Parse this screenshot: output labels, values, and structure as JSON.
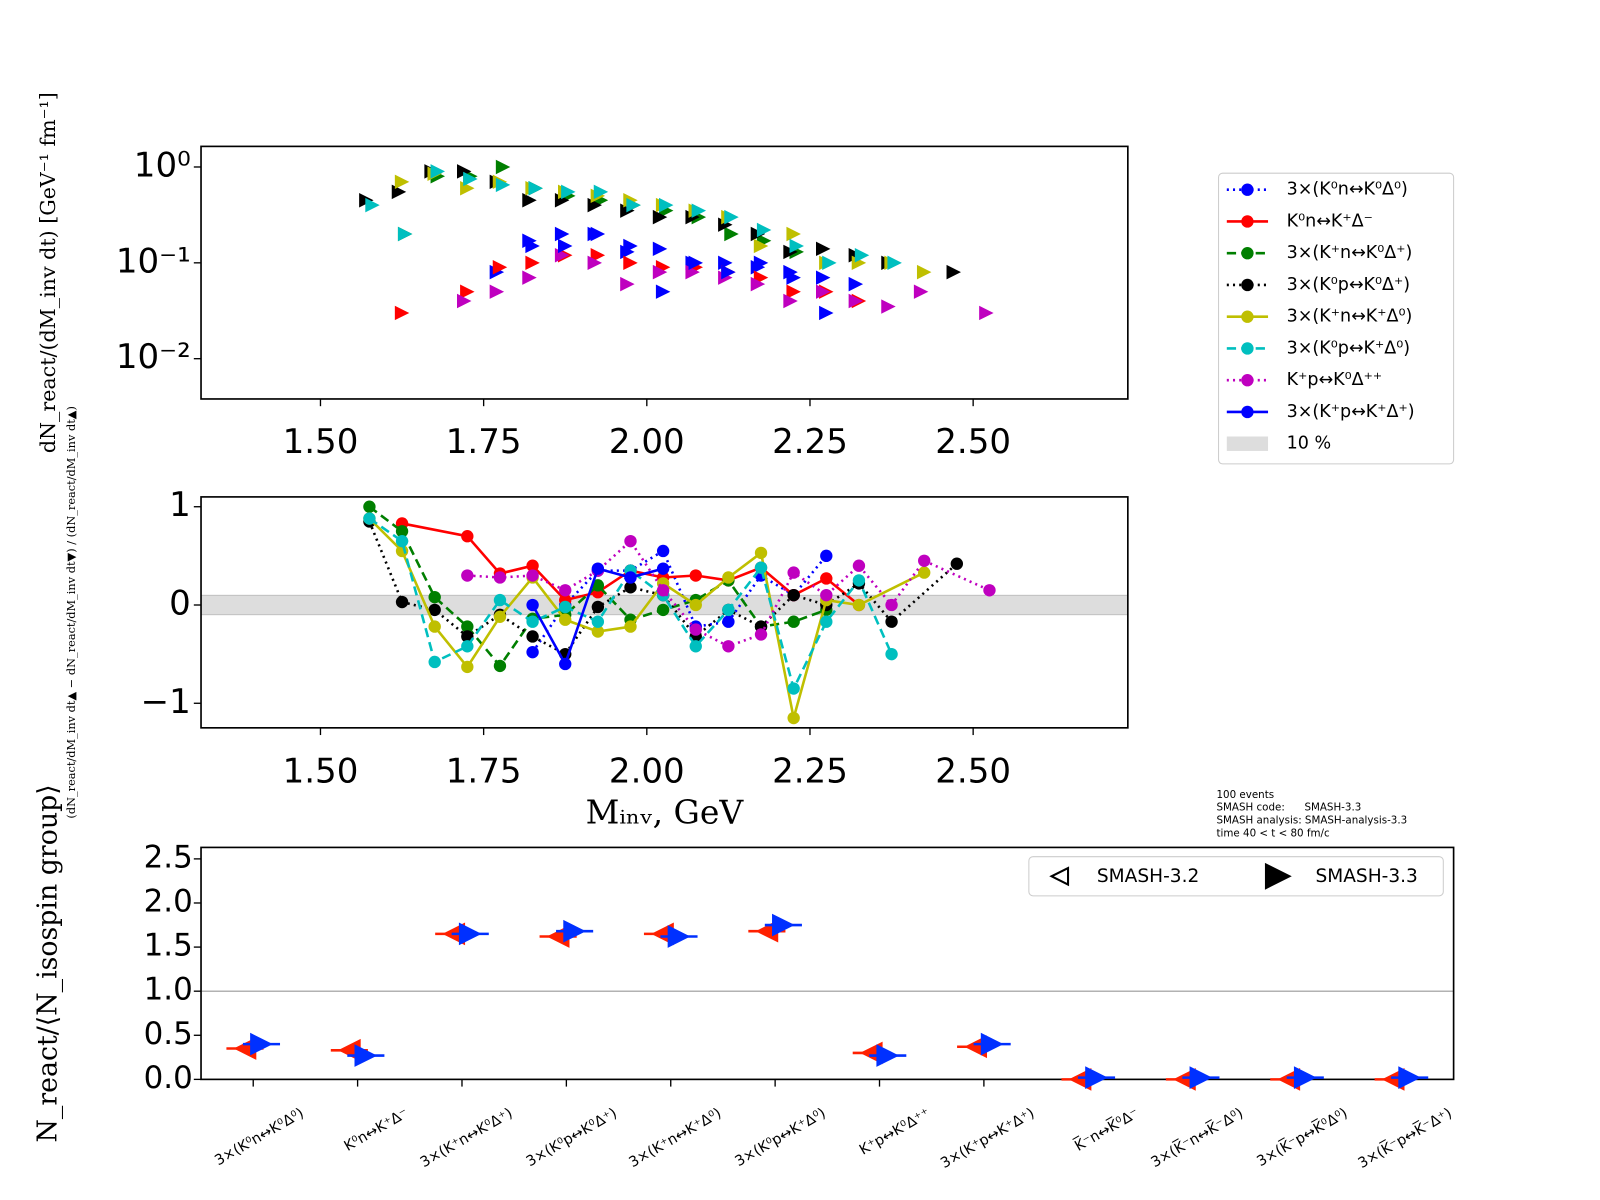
{
  "chart_data": [
    {
      "type": "scatter",
      "y_label": "dN_react/(dM_inv dt) [GeV⁻¹ fm⁻¹]",
      "log_y": true,
      "xlim": [
        1.317,
        2.737
      ],
      "ylim": [
        0.0038,
        1.64
      ],
      "xticks": [
        {
          "value": 1.5,
          "label": "1.50"
        },
        1.75,
        {
          "value": 2.0,
          "label": "2.00"
        },
        2.25,
        {
          "value": 2.5,
          "label": "2.50"
        }
      ],
      "yticks": [
        {
          "value": 0.01,
          "label": "10⁻²"
        },
        {
          "value": 0.1,
          "label": "10⁻¹"
        },
        {
          "value": 1,
          "label": "10⁰"
        }
      ],
      "x": [
        1.575,
        1.625,
        1.675,
        1.725,
        1.775,
        1.825,
        1.875,
        1.925,
        1.975,
        2.025,
        2.075,
        2.125,
        2.175,
        2.225,
        2.275,
        2.325,
        2.375,
        2.425,
        2.475,
        2.525
      ],
      "legend": "outside right",
      "series": [
        {
          "name": "3×(K⁰n↔K⁰Δ⁰)",
          "color": "#0000ff",
          "dash": "dotted",
          "values": [
            null,
            null,
            null,
            null,
            0.08,
            0.17,
            0.2,
            0.2,
            0.13,
            0.14,
            0.1,
            0.1,
            0.09,
            0.08,
            0.07,
            0.06,
            null,
            null,
            null,
            null
          ]
        },
        {
          "name": "K⁰n↔K⁺Δ⁻",
          "color": "#ff0000",
          "dash": "solid",
          "values": [
            null,
            0.03,
            null,
            0.05,
            0.09,
            0.1,
            0.12,
            0.12,
            0.1,
            0.09,
            0.09,
            0.08,
            0.07,
            0.05,
            0.05,
            0.04,
            null,
            null,
            null,
            null
          ]
        },
        {
          "name": "3×(K⁺n↔K⁰Δ⁺)",
          "color": "#007f00",
          "dash": "dashed",
          "values": [
            null,
            0.2,
            0.8,
            0.8,
            1.0,
            0.6,
            0.5,
            0.45,
            0.4,
            0.35,
            0.3,
            0.2,
            0.17,
            0.13,
            null,
            null,
            null,
            null,
            null,
            null
          ]
        },
        {
          "name": "3×(K⁰p↔K⁰Δ⁺)",
          "color": "#000000",
          "dash": "dotted",
          "values": [
            0.45,
            0.55,
            0.9,
            0.9,
            0.7,
            0.45,
            0.45,
            0.4,
            0.35,
            0.3,
            0.3,
            0.25,
            0.2,
            0.13,
            0.14,
            0.12,
            0.1,
            null,
            0.08,
            null
          ]
        },
        {
          "name": "3×(K⁺n↔K⁺Δ⁰)",
          "color": "#bfbf00",
          "dash": "solid",
          "values": [
            null,
            0.7,
            0.85,
            0.6,
            0.7,
            0.6,
            0.55,
            0.5,
            0.45,
            0.4,
            0.35,
            0.3,
            0.15,
            0.2,
            0.1,
            0.1,
            0.1,
            0.08,
            null,
            null
          ]
        },
        {
          "name": "3×(K⁰p↔K⁺Δ⁰)",
          "color": "#00bfbf",
          "dash": "dashed",
          "values": [
            0.4,
            0.2,
            0.9,
            0.75,
            0.65,
            0.6,
            0.55,
            0.55,
            0.4,
            0.4,
            0.35,
            0.3,
            0.22,
            0.15,
            0.1,
            0.12,
            0.1,
            null,
            null,
            null
          ]
        },
        {
          "name": "K⁺p↔K⁰Δ⁺⁺",
          "color": "#bf00bf",
          "dash": "dotted",
          "values": [
            null,
            null,
            null,
            0.04,
            0.05,
            0.07,
            0.12,
            0.1,
            0.06,
            0.08,
            0.08,
            0.07,
            0.06,
            0.04,
            0.05,
            0.04,
            0.035,
            0.05,
            null,
            0.03
          ]
        },
        {
          "name": "3×(K⁺p↔K⁺Δ⁺)",
          "color": "#0000ff",
          "dash": "solid",
          "values": [
            null,
            null,
            null,
            null,
            null,
            0.15,
            0.15,
            0.2,
            0.15,
            0.05,
            0.1,
            0.08,
            0.1,
            0.07,
            0.03,
            null,
            null,
            null,
            null,
            null
          ]
        }
      ]
    },
    {
      "type": "line",
      "y_label": "(dN_react/dM_inv dt▲ − dN_react/dM_inv dt▼) / (dN_react/dM_inv dt▲)",
      "x_label": "Mᵢₙᵥ, GeV",
      "xlim": [
        1.317,
        2.737
      ],
      "ylim": [
        -1.25,
        1.1
      ],
      "xticks": [
        {
          "value": 1.5,
          "label": "1.50"
        },
        1.75,
        {
          "value": 2.0,
          "label": "2.00"
        },
        2.25,
        {
          "value": 2.5,
          "label": "2.50"
        }
      ],
      "yticks": [
        {
          "value": -1,
          "label": "−1"
        },
        0,
        1
      ],
      "band": [
        -0.1,
        0.1
      ],
      "band_label": "10 %",
      "band_color": "#dddddd",
      "series": [
        {
          "color": "#0000ff",
          "dash": "dotted",
          "x": [
            1.825,
            1.875,
            1.925,
            1.975,
            2.025,
            2.075,
            2.125,
            2.175,
            2.225,
            2.275
          ],
          "values": [
            -0.48,
            0.0,
            0.35,
            0.35,
            0.55,
            -0.22,
            -0.17,
            0.3,
            0.1,
            0.5
          ]
        },
        {
          "color": "#ff0000",
          "dash": "solid",
          "x": [
            1.625,
            1.725,
            1.775,
            1.825,
            1.875,
            1.925,
            1.975,
            2.025,
            2.075,
            2.125,
            2.175,
            2.225,
            2.275,
            2.325
          ],
          "values": [
            0.83,
            0.7,
            0.32,
            0.4,
            0.05,
            0.13,
            0.35,
            0.28,
            0.3,
            0.25,
            0.38,
            0.1,
            0.27,
            0.0
          ]
        },
        {
          "color": "#007f00",
          "dash": "dashed",
          "x": [
            1.575,
            1.625,
            1.675,
            1.725,
            1.775,
            1.825,
            1.875,
            1.925,
            1.975,
            2.025,
            2.075,
            2.125,
            2.175,
            2.225,
            2.275
          ],
          "values": [
            1.0,
            0.75,
            0.08,
            -0.22,
            -0.62,
            -0.14,
            -0.1,
            0.2,
            -0.15,
            -0.05,
            0.05,
            0.25,
            -0.22,
            -0.17,
            -0.05
          ]
        },
        {
          "color": "#000000",
          "dash": "dotted",
          "x": [
            1.575,
            1.625,
            1.675,
            1.725,
            1.775,
            1.825,
            1.875,
            1.925,
            1.975,
            2.025,
            2.075,
            2.125,
            2.175,
            2.225,
            2.275,
            2.325,
            2.375,
            2.475
          ],
          "values": [
            0.85,
            0.03,
            -0.05,
            -0.32,
            -0.1,
            -0.32,
            -0.5,
            -0.02,
            0.18,
            0.1,
            -0.32,
            -0.05,
            -0.22,
            0.1,
            0.0,
            0.22,
            -0.17,
            0.42
          ]
        },
        {
          "color": "#bfbf00",
          "dash": "solid",
          "x": [
            1.575,
            1.625,
            1.675,
            1.725,
            1.775,
            1.825,
            1.875,
            1.925,
            1.975,
            2.025,
            2.075,
            2.125,
            2.175,
            2.225,
            2.275,
            2.325,
            2.425
          ],
          "values": [
            0.88,
            0.55,
            -0.22,
            -0.63,
            -0.12,
            0.28,
            -0.15,
            -0.27,
            -0.22,
            0.22,
            0.0,
            0.28,
            0.53,
            -1.15,
            0.05,
            0.0,
            0.33
          ]
        },
        {
          "color": "#00bfbf",
          "dash": "dashed",
          "x": [
            1.575,
            1.625,
            1.675,
            1.725,
            1.775,
            1.825,
            1.875,
            1.925,
            1.975,
            2.025,
            2.075,
            2.125,
            2.175,
            2.225,
            2.275,
            2.325,
            2.375
          ],
          "values": [
            0.88,
            0.65,
            -0.58,
            -0.42,
            0.05,
            -0.17,
            -0.02,
            -0.17,
            0.35,
            0.1,
            -0.42,
            -0.05,
            0.38,
            -0.85,
            -0.17,
            0.25,
            -0.5
          ]
        },
        {
          "color": "#bf00bf",
          "dash": "dotted",
          "x": [
            1.725,
            1.775,
            1.825,
            1.875,
            1.925,
            1.975,
            2.025,
            2.075,
            2.125,
            2.175,
            2.225,
            2.275,
            2.325,
            2.375,
            2.425,
            2.525
          ],
          "values": [
            0.3,
            0.28,
            0.3,
            0.15,
            0.35,
            0.65,
            0.15,
            -0.25,
            -0.42,
            -0.3,
            0.33,
            0.1,
            0.4,
            0.0,
            0.45,
            0.15
          ]
        },
        {
          "color": "#0000ff",
          "dash": "solid",
          "x": [
            1.825,
            1.875,
            1.925,
            1.975,
            2.025
          ],
          "values": [
            0.0,
            -0.6,
            0.37,
            0.28,
            0.37
          ]
        }
      ]
    },
    {
      "type": "scatter",
      "y_label": "N_react/⟨N_isospin group⟩",
      "categories": [
        "3×(K⁰n↔K⁰Δ⁰)",
        "K⁰n↔K⁺Δ⁻",
        "3×(K⁺n↔K⁰Δ⁺)",
        "3×(K⁰p↔K⁰Δ⁺)",
        "3×(K⁺n↔K⁺Δ⁰)",
        "3×(K⁰p↔K⁺Δ⁰)",
        "K⁺p↔K⁰Δ⁺⁺",
        "3×(K⁺p↔K⁺Δ⁺)",
        "K̅⁻n↔K̅⁰Δ⁻",
        "3×(K̅⁻n↔K̅⁻Δ⁰)",
        "3×(K̅⁻p↔K̅⁰Δ⁰)",
        "3×(K̅⁻p↔K̅⁻Δ⁺)"
      ],
      "ylim": [
        0,
        2.63
      ],
      "yticks": [
        {
          "value": 0,
          "label": "0.0"
        },
        0.5,
        {
          "value": 1,
          "label": "1.0"
        },
        1.5,
        {
          "value": 2,
          "label": "2.0"
        },
        2.5
      ],
      "reference_line": 1,
      "legend": "upper right",
      "annotations": [
        "100 events",
        "SMASH code:      SMASH-3.3",
        "SMASH analysis: SMASH-analysis-3.3",
        "time 40 < t < 80 fm/c"
      ],
      "series": [
        {
          "name": "SMASH-3.2",
          "color": "#ff2000",
          "values": [
            0.35,
            0.33,
            1.65,
            1.62,
            1.65,
            1.68,
            0.3,
            0.37,
            0,
            0,
            0,
            0
          ]
        },
        {
          "name": "SMASH-3.3",
          "color": "#0030ff",
          "values": [
            0.4,
            0.27,
            1.65,
            1.68,
            1.62,
            1.75,
            0.27,
            0.4,
            0.02,
            0.02,
            0.02,
            0.02
          ]
        }
      ]
    }
  ]
}
